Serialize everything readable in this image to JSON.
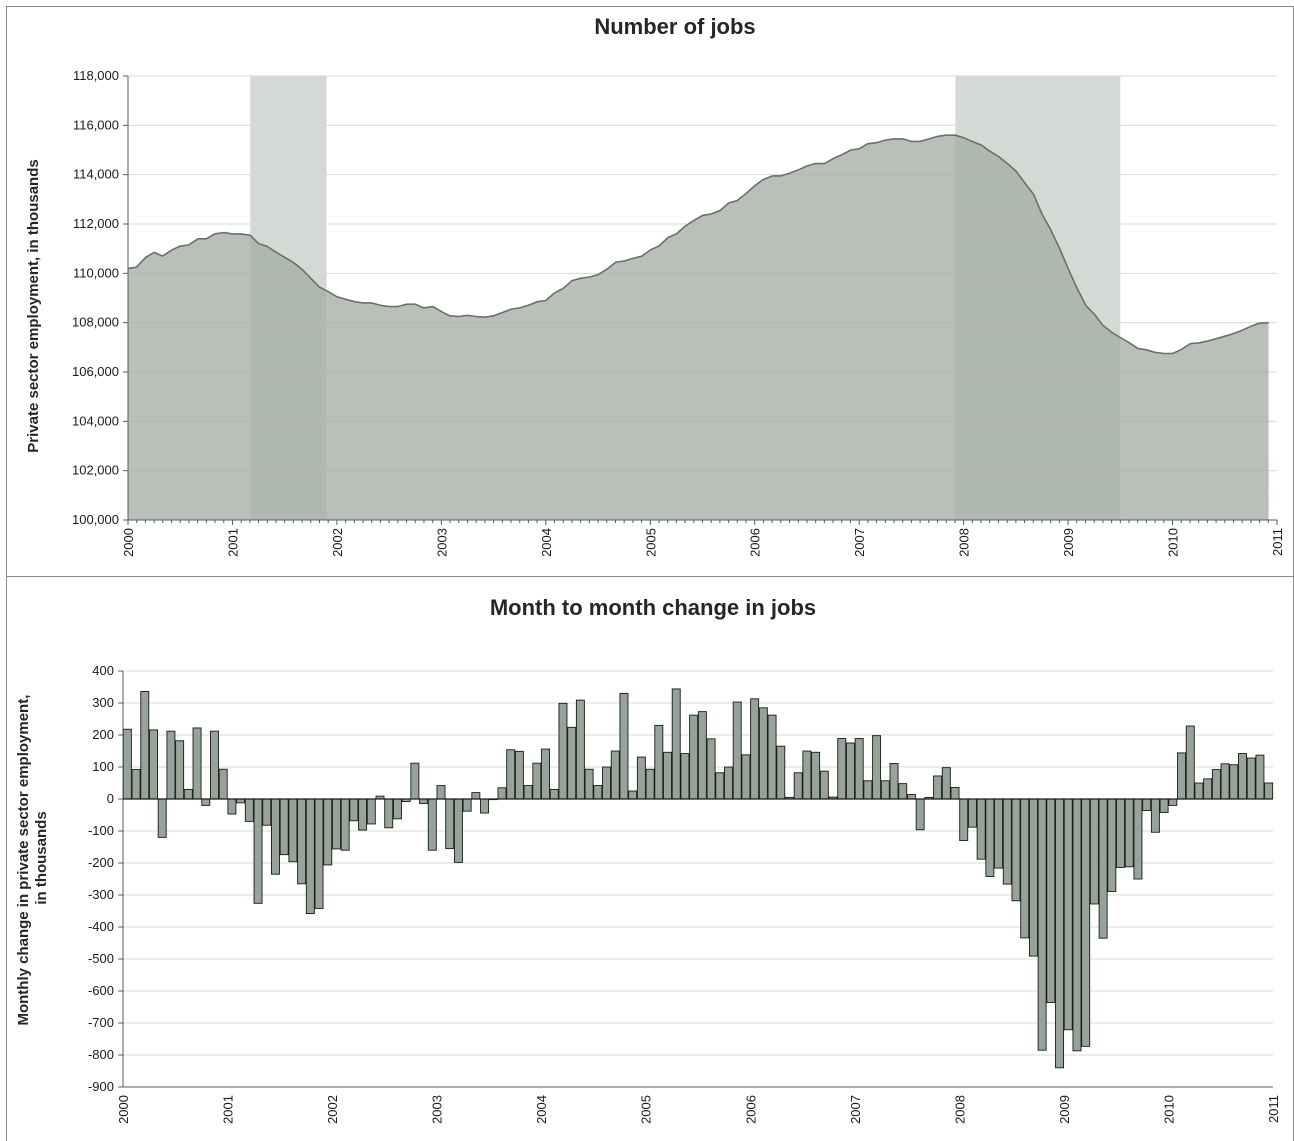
{
  "chart_data": [
    {
      "type": "area",
      "title": "Number of jobs",
      "xlabel": "",
      "ylabel": "Private sector employment, in thousands",
      "xlim": [
        2000,
        2011
      ],
      "ylim": [
        100000,
        118000
      ],
      "yticks": [
        100000,
        102000,
        104000,
        106000,
        108000,
        110000,
        112000,
        114000,
        116000,
        118000
      ],
      "ytick_labels": [
        "100,000",
        "102,000",
        "104,000",
        "106,000",
        "108,000",
        "110,000",
        "112,000",
        "114,000",
        "116,000",
        "118,000"
      ],
      "xtick_labels": [
        "2000",
        "2001",
        "2002",
        "2003",
        "2004",
        "2005",
        "2006",
        "2007",
        "2008",
        "2009",
        "2010",
        "2011"
      ],
      "recessions": [
        [
          2001.17,
          2001.9
        ],
        [
          2007.92,
          2009.5
        ]
      ],
      "grid": true,
      "legend": "none",
      "colors": {
        "fill": "#a4aea5",
        "line": "#677268",
        "recession": "#d4d9d5"
      },
      "points": [
        [
          2000.0,
          110200
        ],
        [
          2000.08,
          110250
        ],
        [
          2000.17,
          110650
        ],
        [
          2000.25,
          110850
        ],
        [
          2000.33,
          110700
        ],
        [
          2000.42,
          110950
        ],
        [
          2000.5,
          111100
        ],
        [
          2000.58,
          111150
        ],
        [
          2000.67,
          111400
        ],
        [
          2000.75,
          111400
        ],
        [
          2000.83,
          111600
        ],
        [
          2000.92,
          111650
        ],
        [
          2001.0,
          111600
        ],
        [
          2001.08,
          111600
        ],
        [
          2001.17,
          111550
        ],
        [
          2001.25,
          111200
        ],
        [
          2001.33,
          111100
        ],
        [
          2001.42,
          110850
        ],
        [
          2001.5,
          110650
        ],
        [
          2001.58,
          110450
        ],
        [
          2001.67,
          110150
        ],
        [
          2001.75,
          109800
        ],
        [
          2001.83,
          109450
        ],
        [
          2001.92,
          109250
        ],
        [
          2002.0,
          109050
        ],
        [
          2002.08,
          108950
        ],
        [
          2002.17,
          108850
        ],
        [
          2002.25,
          108800
        ],
        [
          2002.33,
          108800
        ],
        [
          2002.42,
          108700
        ],
        [
          2002.5,
          108650
        ],
        [
          2002.58,
          108650
        ],
        [
          2002.67,
          108750
        ],
        [
          2002.75,
          108750
        ],
        [
          2002.83,
          108600
        ],
        [
          2002.92,
          108650
        ],
        [
          2003.0,
          108450
        ],
        [
          2003.08,
          108280
        ],
        [
          2003.17,
          108250
        ],
        [
          2003.25,
          108300
        ],
        [
          2003.33,
          108250
        ],
        [
          2003.42,
          108220
        ],
        [
          2003.5,
          108280
        ],
        [
          2003.58,
          108400
        ],
        [
          2003.67,
          108550
        ],
        [
          2003.75,
          108600
        ],
        [
          2003.83,
          108700
        ],
        [
          2003.92,
          108850
        ],
        [
          2004.0,
          108900
        ],
        [
          2004.08,
          109200
        ],
        [
          2004.17,
          109400
        ],
        [
          2004.25,
          109700
        ],
        [
          2004.33,
          109800
        ],
        [
          2004.42,
          109850
        ],
        [
          2004.5,
          109950
        ],
        [
          2004.58,
          110150
        ],
        [
          2004.67,
          110450
        ],
        [
          2004.75,
          110500
        ],
        [
          2004.83,
          110600
        ],
        [
          2004.92,
          110700
        ],
        [
          2005.0,
          110950
        ],
        [
          2005.08,
          111100
        ],
        [
          2005.17,
          111450
        ],
        [
          2005.25,
          111600
        ],
        [
          2005.33,
          111900
        ],
        [
          2005.42,
          112150
        ],
        [
          2005.5,
          112350
        ],
        [
          2005.58,
          112400
        ],
        [
          2005.67,
          112550
        ],
        [
          2005.75,
          112850
        ],
        [
          2005.83,
          112950
        ],
        [
          2005.92,
          113250
        ],
        [
          2006.0,
          113550
        ],
        [
          2006.08,
          113800
        ],
        [
          2006.17,
          113950
        ],
        [
          2006.25,
          113950
        ],
        [
          2006.33,
          114050
        ],
        [
          2006.42,
          114200
        ],
        [
          2006.5,
          114350
        ],
        [
          2006.58,
          114450
        ],
        [
          2006.67,
          114450
        ],
        [
          2006.75,
          114650
        ],
        [
          2006.83,
          114800
        ],
        [
          2006.92,
          115000
        ],
        [
          2007.0,
          115050
        ],
        [
          2007.08,
          115250
        ],
        [
          2007.17,
          115300
        ],
        [
          2007.25,
          115400
        ],
        [
          2007.33,
          115450
        ],
        [
          2007.42,
          115450
        ],
        [
          2007.5,
          115350
        ],
        [
          2007.58,
          115350
        ],
        [
          2007.67,
          115450
        ],
        [
          2007.75,
          115550
        ],
        [
          2007.83,
          115600
        ],
        [
          2007.92,
          115600
        ],
        [
          2008.0,
          115500
        ],
        [
          2008.08,
          115350
        ],
        [
          2008.17,
          115200
        ],
        [
          2008.25,
          114950
        ],
        [
          2008.33,
          114750
        ],
        [
          2008.42,
          114450
        ],
        [
          2008.5,
          114150
        ],
        [
          2008.58,
          113700
        ],
        [
          2008.67,
          113200
        ],
        [
          2008.75,
          112400
        ],
        [
          2008.83,
          111800
        ],
        [
          2008.92,
          111000
        ],
        [
          2009.0,
          110200
        ],
        [
          2009.08,
          109450
        ],
        [
          2009.17,
          108700
        ],
        [
          2009.25,
          108350
        ],
        [
          2009.33,
          107900
        ],
        [
          2009.42,
          107600
        ],
        [
          2009.5,
          107400
        ],
        [
          2009.58,
          107200
        ],
        [
          2009.67,
          106950
        ],
        [
          2009.75,
          106900
        ],
        [
          2009.83,
          106800
        ],
        [
          2009.92,
          106750
        ],
        [
          2010.0,
          106750
        ],
        [
          2010.08,
          106900
        ],
        [
          2010.17,
          107150
        ],
        [
          2010.25,
          107180
        ],
        [
          2010.33,
          107250
        ],
        [
          2010.42,
          107350
        ],
        [
          2010.5,
          107450
        ],
        [
          2010.58,
          107550
        ],
        [
          2010.67,
          107700
        ],
        [
          2010.75,
          107850
        ],
        [
          2010.83,
          107980
        ],
        [
          2010.92,
          108000
        ]
      ]
    },
    {
      "type": "bar",
      "title": "Month to month change in jobs",
      "xlabel": "",
      "ylabel": "Monthly change in private sector employment, in thousands",
      "ylim": [
        -900,
        400
      ],
      "yticks": [
        -900,
        -800,
        -700,
        -600,
        -500,
        -400,
        -300,
        -200,
        -100,
        0,
        100,
        200,
        300,
        400
      ],
      "ytick_labels": [
        "-900",
        "-800",
        "-700",
        "-600",
        "-500",
        "-400",
        "-300",
        "-200",
        "-100",
        "0",
        "100",
        "200",
        "300",
        "400"
      ],
      "xtick_labels": [
        "2000",
        "2001",
        "2002",
        "2003",
        "2004",
        "2005",
        "2006",
        "2007",
        "2008",
        "2009",
        "2010",
        "2011"
      ],
      "grid": true,
      "legend": "none",
      "colors": {
        "bar": "#96a399",
        "edge": "#1a1a1a"
      },
      "values": [
        218,
        92,
        336,
        216,
        -120,
        212,
        182,
        30,
        222,
        -20,
        212,
        93,
        -47,
        -12,
        -70,
        -326,
        -82,
        -235,
        -174,
        -196,
        -265,
        -358,
        -342,
        -206,
        -156,
        -160,
        -68,
        -97,
        -78,
        9,
        -90,
        -62,
        -8,
        112,
        -14,
        -160,
        42,
        -155,
        -198,
        -38,
        20,
        -44,
        -2,
        35,
        154,
        149,
        42,
        112,
        156,
        30,
        299,
        224,
        309,
        93,
        42,
        100,
        150,
        330,
        25,
        131,
        93,
        230,
        146,
        344,
        142,
        262,
        273,
        188,
        82,
        100,
        303,
        138,
        313,
        285,
        262,
        165,
        5,
        82,
        150,
        146,
        87,
        6,
        189,
        175,
        189,
        57,
        198,
        57,
        111,
        48,
        14,
        -96,
        5,
        72,
        98,
        36,
        -130,
        -88,
        -188,
        -242,
        -216,
        -266,
        -318,
        -434,
        -491,
        -785,
        -636,
        -840,
        -721,
        -787,
        -773,
        -328,
        -435,
        -289,
        -214,
        -212,
        -250,
        -36,
        -104,
        -42,
        -20,
        144,
        228,
        50,
        63,
        92,
        110,
        107,
        142,
        128,
        137,
        50
      ]
    }
  ]
}
